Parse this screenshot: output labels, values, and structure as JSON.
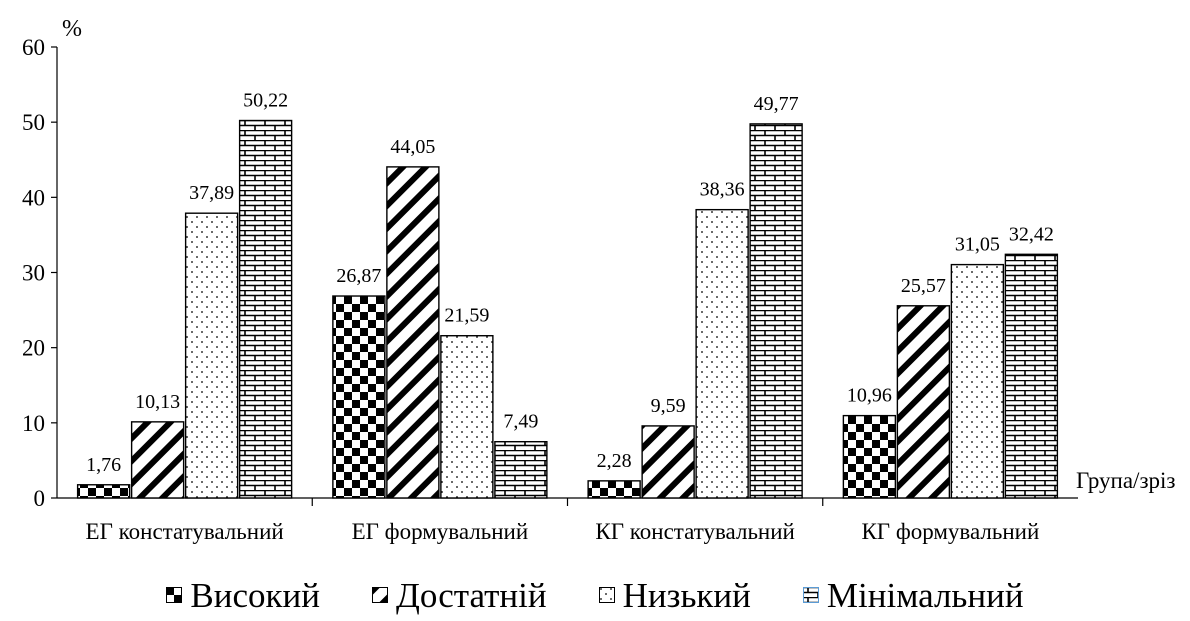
{
  "chart_data": {
    "type": "bar",
    "y_unit_label": "%",
    "xlabel": "Група/зріз",
    "ylim": [
      0,
      60
    ],
    "yticks": [
      0,
      10,
      20,
      30,
      40,
      50,
      60
    ],
    "grid": false,
    "legend_position": "bottom",
    "categories": [
      "ЕГ констатувальний",
      "ЕГ формувальний",
      "КГ констатувальний",
      "КГ формувальний"
    ],
    "series": [
      {
        "name": "Високий",
        "pattern": "checker",
        "values": [
          1.76,
          26.87,
          2.28,
          10.96
        ],
        "labels": [
          "1,76",
          "26,87",
          "2,28",
          "10,96"
        ]
      },
      {
        "name": "Достатній",
        "pattern": "diagonal",
        "values": [
          10.13,
          44.05,
          9.59,
          25.57
        ],
        "labels": [
          "10,13",
          "44,05",
          "9,59",
          "25,57"
        ]
      },
      {
        "name": "Низький",
        "pattern": "dots",
        "values": [
          37.89,
          21.59,
          38.36,
          31.05
        ],
        "labels": [
          "37,89",
          "21,59",
          "38,36",
          "31,05"
        ]
      },
      {
        "name": "Мінімальний",
        "pattern": "brick",
        "values": [
          50.22,
          7.49,
          49.77,
          32.42
        ],
        "labels": [
          "50,22",
          "7,49",
          "49,77",
          "32,42"
        ]
      }
    ],
    "colors": {
      "fill": "#000000",
      "background": "#ffffff",
      "legend_accent": "#5b9bd5"
    }
  }
}
